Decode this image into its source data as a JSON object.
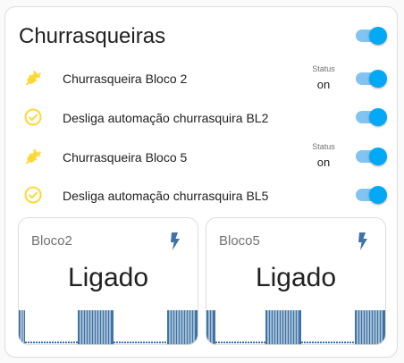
{
  "card": {
    "title": "Churrasqueiras",
    "rows": [
      {
        "label": "Churrasqueira Bloco 2",
        "icon": "power-plug-icon",
        "status_title": "Status",
        "status_value": "on",
        "toggle_on": true
      },
      {
        "label": "Desliga automação churrasquira BL2",
        "icon": "check-circle-icon",
        "toggle_on": true
      },
      {
        "label": "Churrasqueira Bloco 5",
        "icon": "power-plug-icon",
        "status_title": "Status",
        "status_value": "on",
        "toggle_on": true
      },
      {
        "label": "Desliga automação churrasquira BL5",
        "icon": "check-circle-icon",
        "toggle_on": true
      }
    ],
    "header_toggle_on": true
  },
  "sensors": [
    {
      "name": "Bloco2",
      "state": "Ligado",
      "icon": "flash-icon"
    },
    {
      "name": "Bloco5",
      "state": "Ligado",
      "icon": "flash-icon"
    }
  ],
  "colors": {
    "accent": "#03a9f4",
    "accent_track": "#83c3f2",
    "icon_yellow": "#fdd835",
    "graph_blue": "#3f74a6"
  }
}
